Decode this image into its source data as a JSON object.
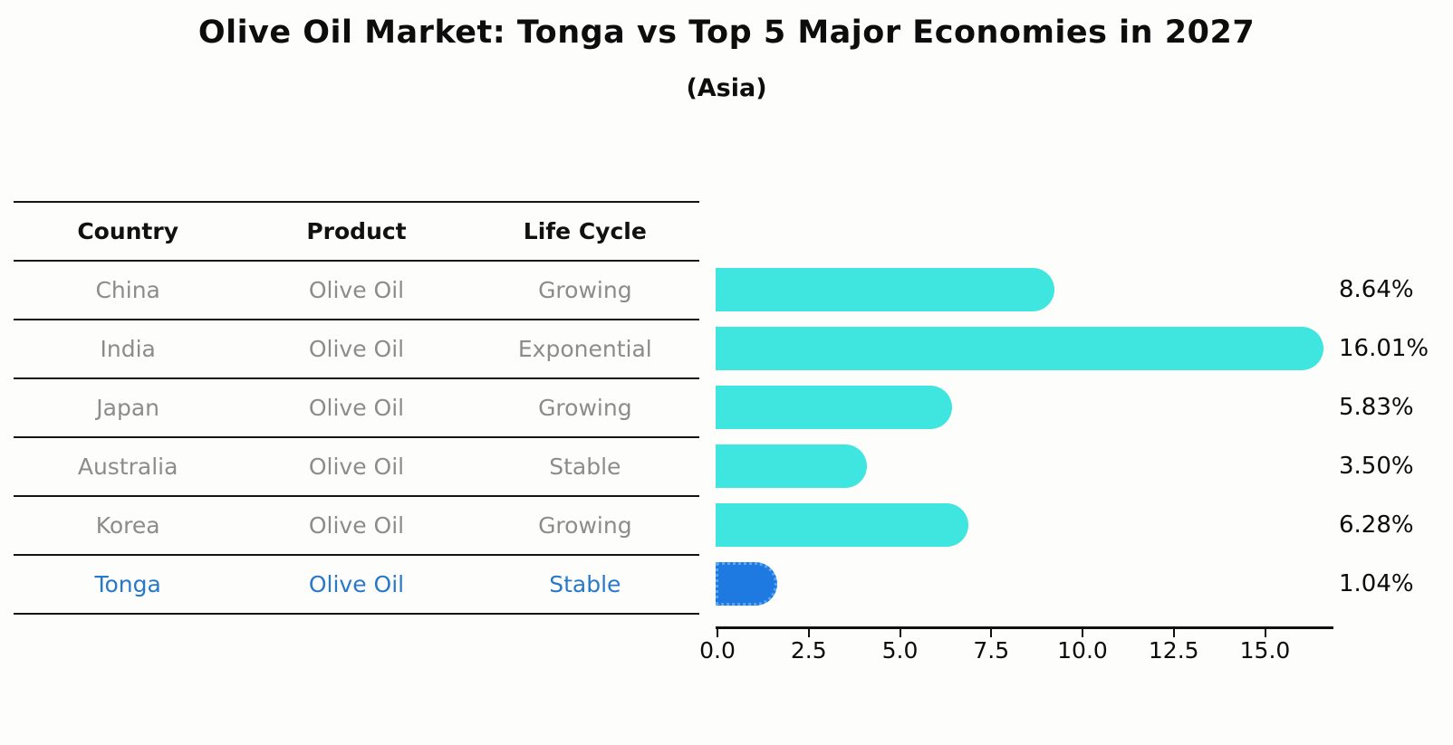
{
  "title": "Olive Oil Market: Tonga vs Top 5 Major Economies in 2027",
  "subtitle": "(Asia)",
  "table": {
    "headers": [
      "Country",
      "Product",
      "Life Cycle"
    ],
    "rows": [
      {
        "country": "China",
        "product": "Olive Oil",
        "life_cycle": "Growing",
        "highlight": false
      },
      {
        "country": "India",
        "product": "Olive Oil",
        "life_cycle": "Exponential",
        "highlight": false
      },
      {
        "country": "Japan",
        "product": "Olive Oil",
        "life_cycle": "Growing",
        "highlight": false
      },
      {
        "country": "Australia",
        "product": "Olive Oil",
        "life_cycle": "Stable",
        "highlight": false
      },
      {
        "country": "Korea",
        "product": "Olive Oil",
        "life_cycle": "Growing",
        "highlight": false
      },
      {
        "country": "Tonga",
        "product": "Olive Oil",
        "life_cycle": "Stable",
        "highlight": true
      }
    ]
  },
  "chart_data": {
    "type": "bar",
    "orientation": "horizontal",
    "title": "Olive Oil Market: Tonga vs Top 5 Major Economies in 2027",
    "subtitle": "(Asia)",
    "categories": [
      "China",
      "India",
      "Japan",
      "Australia",
      "Korea",
      "Tonga"
    ],
    "values": [
      8.64,
      16.01,
      5.83,
      3.5,
      6.28,
      1.04
    ],
    "labels": [
      "8.64%",
      "16.01%",
      "5.83%",
      "3.50%",
      "6.28%",
      "1.04%"
    ],
    "x_ticks": [
      "0.0",
      "2.5",
      "5.0",
      "7.5",
      "10.0",
      "12.5",
      "15.0"
    ],
    "x_tick_values": [
      0.0,
      2.5,
      5.0,
      7.5,
      10.0,
      12.5,
      15.0
    ],
    "xlim": [
      0,
      16.9
    ],
    "grid": false,
    "legend": "none",
    "highlight_index": 5
  },
  "colors": {
    "bar": "#3fe5df",
    "highlight_bar": "#1e79e1",
    "highlight_border": "#5aa7f2",
    "highlight_text": "#2879c9",
    "row_text": "#8c8c8c",
    "axis": "#111111"
  }
}
